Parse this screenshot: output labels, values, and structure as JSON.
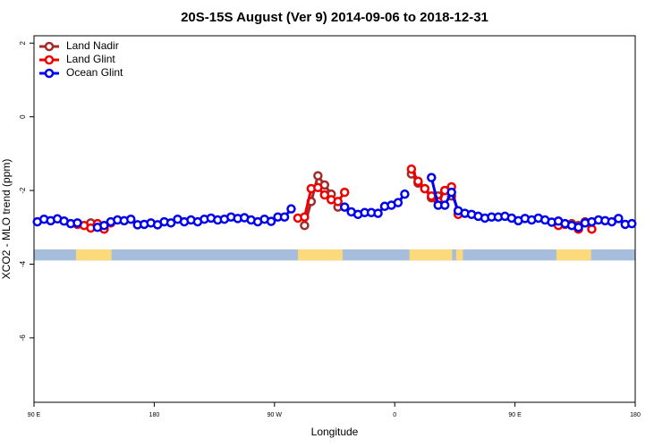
{
  "chart_data": {
    "type": "line",
    "title": "20S-15S August (Ver 9)   2014-09-06 to 2018-12-31",
    "xlabel": "Longitude",
    "ylabel": "XCO2 - MLO trend (ppm)",
    "xlim": [
      90,
      540
    ],
    "ylim": [
      -7.75,
      2.2
    ],
    "xticks": [
      {
        "value": 90,
        "label": "90 E"
      },
      {
        "value": 180,
        "label": "180"
      },
      {
        "value": 270,
        "label": "90 W"
      },
      {
        "value": 360,
        "label": "0"
      },
      {
        "value": 450,
        "label": "90 E"
      },
      {
        "value": 540,
        "label": "180"
      }
    ],
    "yticks": [
      2,
      0,
      -2,
      -4,
      -6
    ],
    "legend": "top-left",
    "land_mask": {
      "ylim": [
        -3.9,
        -3.6
      ],
      "ocean_color": "#a6bddb",
      "land_color": "#fcd97a",
      "land": [
        [
          121.5,
          148
        ],
        [
          287.6,
          321
        ],
        [
          371,
          403
        ],
        [
          406,
          411
        ],
        [
          481,
          507
        ]
      ]
    },
    "x": [
      92.5,
      97.5,
      102.5,
      107.5,
      112.5,
      117.5,
      122.5,
      127.5,
      132.5,
      137.5,
      142.5,
      147.5,
      152.5,
      157.5,
      162.5,
      167.5,
      172.5,
      177.5,
      182.5,
      187.5,
      192.5,
      197.5,
      202.5,
      207.5,
      212.5,
      217.5,
      222.5,
      227.5,
      232.5,
      237.5,
      242.5,
      247.5,
      252.5,
      257.5,
      262.5,
      267.5,
      272.5,
      277.5,
      282.5,
      287.5,
      292.5,
      297.5,
      302.5,
      307.5,
      312.5,
      317.5,
      322.5,
      327.5,
      332.5,
      337.5,
      342.5,
      347.5,
      352.5,
      357.5,
      362.5,
      367.5,
      372.5,
      377.5,
      382.5,
      387.5,
      392.5,
      397.5,
      402.5,
      407.5,
      412.5,
      417.5,
      422.5,
      427.5,
      432.5,
      437.5,
      442.5,
      447.5,
      452.5,
      457.5,
      462.5,
      467.5,
      472.5,
      477.5,
      482.5,
      487.5,
      492.5,
      497.5,
      502.5,
      507.5,
      512.5,
      517.5,
      522.5,
      527.5,
      532.5,
      537.5
    ],
    "series": [
      {
        "name": "Land Nadir",
        "color": "#a52a2a",
        "values": [
          null,
          null,
          null,
          null,
          null,
          null,
          null,
          null,
          -2.88,
          -2.92,
          null,
          null,
          null,
          null,
          null,
          null,
          null,
          null,
          null,
          null,
          null,
          null,
          null,
          null,
          null,
          null,
          null,
          null,
          null,
          null,
          null,
          null,
          null,
          null,
          null,
          null,
          null,
          null,
          null,
          null,
          -2.95,
          -2.3,
          -1.6,
          -1.85,
          -2.1,
          -2.45,
          null,
          null,
          null,
          null,
          null,
          null,
          null,
          null,
          null,
          null,
          -1.55,
          -1.8,
          -1.95,
          -2.2,
          -2.15,
          -2.0,
          -2.15,
          null,
          null,
          null,
          null,
          null,
          null,
          null,
          null,
          null,
          null,
          null,
          null,
          null,
          null,
          null,
          null,
          null,
          -2.9,
          -2.95,
          -2.85,
          null,
          null,
          null,
          null,
          null,
          null,
          null
        ]
      },
      {
        "name": "Land Glint",
        "color": "#ee0000",
        "values": [
          null,
          null,
          null,
          null,
          null,
          null,
          -2.92,
          -2.95,
          -3.02,
          -2.9,
          -3.05,
          -2.88,
          null,
          null,
          null,
          null,
          null,
          null,
          null,
          null,
          null,
          null,
          null,
          null,
          null,
          null,
          null,
          null,
          null,
          null,
          null,
          null,
          null,
          null,
          null,
          null,
          null,
          null,
          null,
          -2.75,
          -2.72,
          -1.95,
          -1.92,
          -2.12,
          -2.25,
          -2.3,
          -2.05,
          null,
          null,
          null,
          null,
          null,
          null,
          null,
          null,
          null,
          -1.42,
          -1.75,
          -1.95,
          -2.15,
          -2.3,
          -2.0,
          -1.9,
          -2.65,
          null,
          null,
          null,
          null,
          null,
          null,
          null,
          null,
          null,
          null,
          null,
          null,
          null,
          null,
          -2.95,
          -2.92,
          -2.95,
          -3.05,
          -2.88,
          -3.05,
          null,
          null,
          null,
          null,
          null,
          null
        ]
      },
      {
        "name": "Ocean Glint",
        "color": "#0000ee",
        "values": [
          -2.85,
          -2.78,
          -2.82,
          -2.77,
          -2.83,
          -2.9,
          -2.88,
          null,
          null,
          -3.0,
          -2.95,
          -2.85,
          -2.8,
          -2.82,
          -2.78,
          -2.93,
          -2.92,
          -2.88,
          -2.93,
          -2.85,
          -2.88,
          -2.78,
          -2.85,
          -2.8,
          -2.85,
          -2.78,
          -2.75,
          -2.8,
          -2.78,
          -2.72,
          -2.76,
          -2.74,
          -2.8,
          -2.85,
          -2.78,
          -2.84,
          -2.72,
          -2.72,
          -2.5,
          null,
          null,
          null,
          null,
          null,
          null,
          null,
          -2.45,
          -2.58,
          -2.65,
          -2.6,
          -2.6,
          -2.62,
          -2.43,
          -2.4,
          -2.33,
          -2.1,
          null,
          null,
          null,
          -1.65,
          -2.4,
          -2.4,
          -2.05,
          -2.55,
          -2.62,
          -2.65,
          -2.7,
          -2.75,
          -2.72,
          -2.72,
          -2.7,
          -2.75,
          -2.82,
          -2.76,
          -2.8,
          -2.75,
          -2.8,
          -2.86,
          -2.83,
          -2.9,
          -2.95,
          -3.0,
          -2.88,
          -2.85,
          -2.8,
          -2.82,
          -2.85,
          -2.76,
          -2.92,
          -2.9
        ]
      }
    ]
  }
}
